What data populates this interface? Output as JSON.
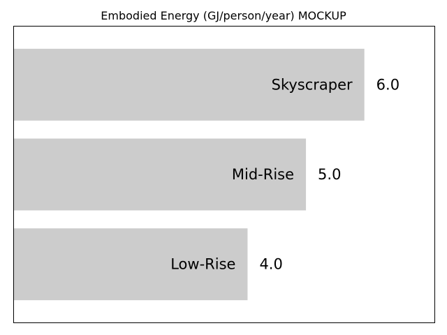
{
  "chart_data": {
    "type": "bar",
    "orientation": "horizontal",
    "title": "Embodied Energy (GJ/person/year) MOCKUP",
    "xlabel": "",
    "ylabel": "",
    "categories": [
      "Skyscraper",
      "Mid-Rise",
      "Low-Rise"
    ],
    "values": [
      6.0,
      5.0,
      4.0
    ],
    "value_labels": [
      "6.0",
      "5.0",
      "4.0"
    ],
    "xlim": [
      0,
      7.2
    ],
    "grid": false,
    "legend": "none",
    "bar_color": "#cccccc",
    "axis_ticks": "hidden"
  }
}
